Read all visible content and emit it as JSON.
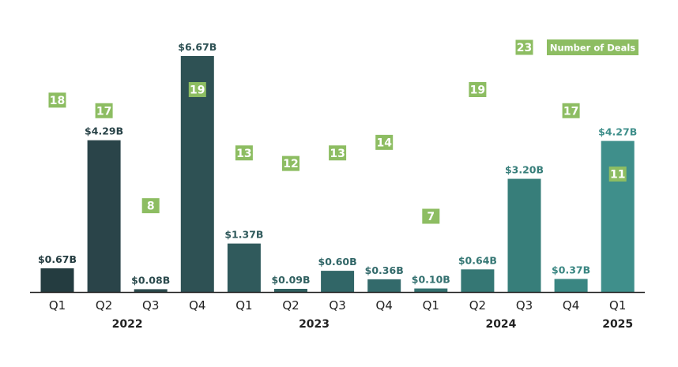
{
  "chart_data": {
    "type": "bar",
    "categories": [
      "Q1",
      "Q2",
      "Q3",
      "Q4",
      "Q1",
      "Q2",
      "Q3",
      "Q4",
      "Q1",
      "Q2",
      "Q3",
      "Q4",
      "Q1"
    ],
    "years": [
      {
        "label": "2022",
        "span": [
          0,
          3
        ]
      },
      {
        "label": "2023",
        "span": [
          4,
          7
        ]
      },
      {
        "label": "2024",
        "span": [
          8,
          11
        ]
      },
      {
        "label": "2025",
        "span": [
          12,
          12
        ]
      }
    ],
    "series": [
      {
        "values": [
          0.67,
          4.29,
          0.08,
          6.67,
          1.37,
          0.09,
          0.6,
          0.36,
          0.1,
          0.64,
          3.2,
          0.37,
          4.27
        ],
        "labels": [
          "$0.67B",
          "$4.29B",
          "$0.08B",
          "$6.67B",
          "$1.37B",
          "$0.09B",
          "$0.60B",
          "$0.36B",
          "$0.10B",
          "$0.64B",
          "$3.20B",
          "$0.37B",
          "$4.27B"
        ]
      },
      {
        "name": "Number of Deals",
        "values": [
          18,
          17,
          8,
          19,
          13,
          12,
          13,
          14,
          7,
          19,
          23,
          17,
          11
        ]
      }
    ],
    "ylim": [
      0,
      6.67
    ],
    "legend": {
      "label": "Number of Deals",
      "position": "top-right"
    },
    "colors": {
      "bars": [
        "#243c40",
        "#2a4449",
        "#2b4a4d",
        "#2e5154",
        "#305a5c",
        "#306060",
        "#316667",
        "#336a6b",
        "#33706f",
        "#357774",
        "#377e7a",
        "#3a8682",
        "#3f8f8b"
      ],
      "badge": "#8dbd62",
      "axis": "#222222"
    }
  }
}
